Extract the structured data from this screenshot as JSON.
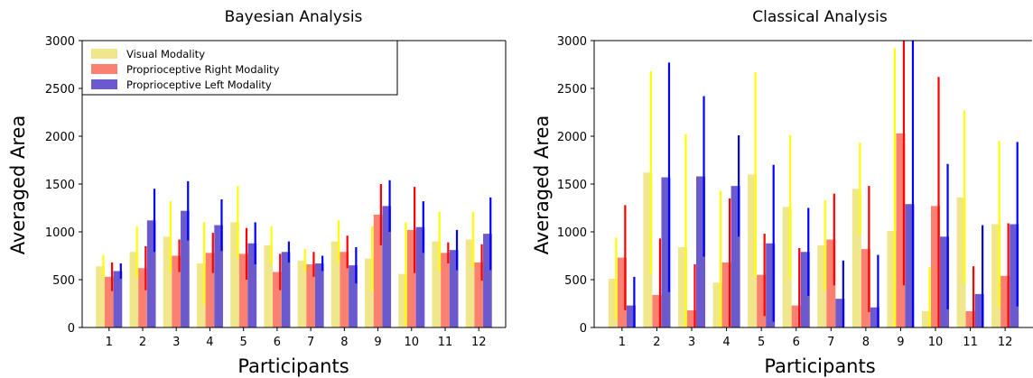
{
  "chart_data": [
    {
      "type": "bar",
      "title": "Bayesian Analysis",
      "xlabel": "Participants",
      "ylabel": "Averaged Area",
      "ylim": [
        0,
        3000
      ],
      "yticks": [
        0,
        500,
        1000,
        1500,
        2000,
        2500,
        3000
      ],
      "categories": [
        "1",
        "2",
        "3",
        "4",
        "5",
        "6",
        "7",
        "8",
        "9",
        "10",
        "11",
        "12"
      ],
      "legend": "top-left",
      "series": [
        {
          "name": "Visual Modality",
          "color": "#f0e68c",
          "error_color": "#ffff00",
          "values": [
            640,
            790,
            950,
            670,
            1100,
            860,
            700,
            900,
            720,
            560,
            900,
            920
          ],
          "error": [
            120,
            270,
            370,
            430,
            380,
            200,
            120,
            220,
            340,
            540,
            310,
            290
          ]
        },
        {
          "name": "Proprioceptive Right Modality",
          "color": "#fa8072",
          "error_color": "#ff0000",
          "values": [
            530,
            620,
            750,
            780,
            770,
            580,
            660,
            790,
            1180,
            1020,
            780,
            680
          ],
          "error": [
            150,
            230,
            170,
            210,
            270,
            190,
            130,
            170,
            320,
            450,
            110,
            190
          ]
        },
        {
          "name": "Proprioceptive Left Modality",
          "color": "#6a5acd",
          "error_color": "#0000ff",
          "values": [
            590,
            1120,
            1220,
            1070,
            880,
            790,
            670,
            650,
            1270,
            1050,
            810,
            980
          ],
          "error": [
            80,
            330,
            310,
            270,
            220,
            110,
            80,
            190,
            270,
            270,
            210,
            380
          ]
        }
      ]
    },
    {
      "type": "bar",
      "title": "Classical Analysis",
      "xlabel": "Participants",
      "ylabel": "Averaged Area",
      "ylim": [
        0,
        3000
      ],
      "yticks": [
        0,
        500,
        1000,
        1500,
        2000,
        2500,
        3000
      ],
      "categories": [
        "1",
        "2",
        "3",
        "4",
        "5",
        "6",
        "7",
        "8",
        "9",
        "10",
        "11",
        "12"
      ],
      "series": [
        {
          "name": "Visual Modality",
          "color": "#f0e68c",
          "error_color": "#ffff00",
          "values": [
            510,
            1620,
            840,
            470,
            1600,
            1260,
            860,
            1450,
            1010,
            170,
            1360,
            1080
          ],
          "error": [
            430,
            1060,
            1180,
            960,
            1070,
            750,
            470,
            480,
            1910,
            460,
            910,
            870
          ]
        },
        {
          "name": "Proprioceptive Right Modality",
          "color": "#fa8072",
          "error_color": "#ff0000",
          "values": [
            730,
            340,
            180,
            680,
            550,
            230,
            920,
            820,
            2030,
            1270,
            170,
            540
          ],
          "error": [
            550,
            590,
            480,
            670,
            430,
            600,
            480,
            660,
            1590,
            1350,
            470,
            550
          ]
        },
        {
          "name": "Proprioceptive Left Modality",
          "color": "#6a5acd",
          "error_color": "#0000ff",
          "values": [
            230,
            1570,
            1580,
            1480,
            880,
            790,
            300,
            210,
            1290,
            950,
            350,
            1080
          ],
          "error": [
            300,
            1200,
            840,
            530,
            820,
            460,
            400,
            550,
            1710,
            760,
            720,
            860
          ]
        }
      ]
    }
  ]
}
